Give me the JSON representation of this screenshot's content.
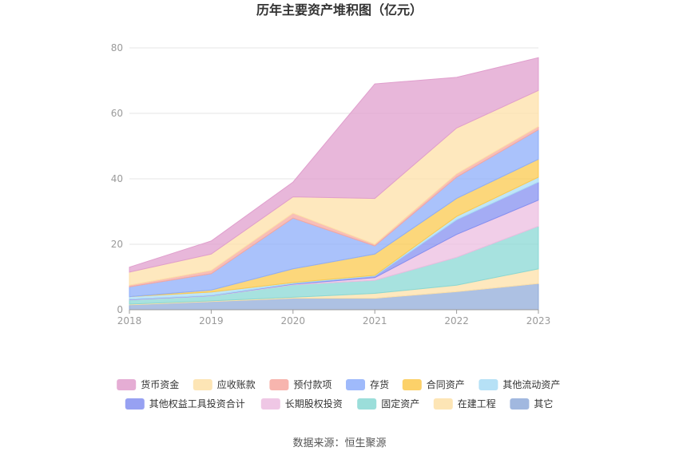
{
  "chart_data": {
    "type": "area",
    "stacked": true,
    "title": "历年主要资产堆积图（亿元）",
    "xlabel": "",
    "ylabel": "",
    "x": [
      "2018",
      "2019",
      "2020",
      "2021",
      "2022",
      "2023"
    ],
    "ylim": [
      0,
      80
    ],
    "yticks": [
      "0",
      "20",
      "40",
      "60",
      "80"
    ],
    "grid": true,
    "legend_position": "bottom",
    "series": [
      {
        "name": "其它",
        "color": "#91acd9",
        "values": [
          1.5,
          2.5,
          3.5,
          3.5,
          5.5,
          8.0
        ]
      },
      {
        "name": "在建工程",
        "color": "#fde0a8",
        "values": [
          0.2,
          0.2,
          0.3,
          1.5,
          2.0,
          4.5
        ]
      },
      {
        "name": "固定资产",
        "color": "#8ad8d4",
        "values": [
          1.3,
          1.5,
          3.8,
          4.0,
          8.5,
          13.0
        ]
      },
      {
        "name": "长期股权投资",
        "color": "#ecbde0",
        "values": [
          0.1,
          0.1,
          0.2,
          0.8,
          7.0,
          8.0
        ]
      },
      {
        "name": "其他权益工具投资合计",
        "color": "#8590f0",
        "values": [
          0.1,
          0.1,
          0.2,
          0.5,
          4.5,
          5.5
        ]
      },
      {
        "name": "其他流动资产",
        "color": "#a9dcf5",
        "values": [
          0.8,
          1.0,
          0.3,
          0.2,
          1.0,
          1.5
        ]
      },
      {
        "name": "合同资产",
        "color": "#fbc94f",
        "values": [
          0.0,
          0.6,
          4.2,
          6.5,
          5.5,
          5.5
        ]
      },
      {
        "name": "存货",
        "color": "#8eaefa",
        "values": [
          3.0,
          5.0,
          15.5,
          2.5,
          6.5,
          9.0
        ]
      },
      {
        "name": "预付款项",
        "color": "#f6a8a0",
        "values": [
          0.5,
          1.0,
          1.5,
          0.5,
          1.0,
          1.0
        ]
      },
      {
        "name": "应收账款",
        "color": "#fde0a8",
        "values": [
          4.0,
          5.0,
          5.0,
          14.0,
          14.0,
          11.0
        ]
      },
      {
        "name": "货币资金",
        "color": "#e09fcd",
        "values": [
          1.5,
          4.0,
          4.5,
          35.0,
          15.5,
          10.0
        ]
      }
    ],
    "legend_order": [
      "货币资金",
      "应收账款",
      "预付款项",
      "存货",
      "合同资产",
      "其他流动资产",
      "其他权益工具投资合计",
      "长期股权投资",
      "固定资产",
      "在建工程",
      "其它"
    ]
  },
  "source_text": "数据来源：恒生聚源"
}
